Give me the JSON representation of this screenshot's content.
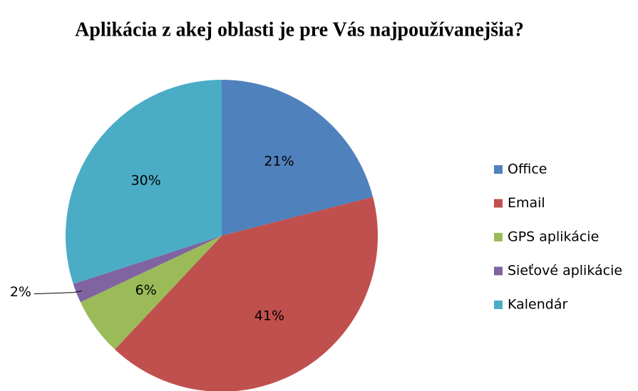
{
  "chart_data": {
    "type": "pie",
    "title": "Aplikácia z akej oblasti je pre Vás najpoužívanejšia?",
    "categories": [
      "Office",
      "Email",
      "GPS aplikácie",
      "Sieťové aplikácie",
      "Kalendár"
    ],
    "values": [
      21,
      41,
      6,
      2,
      30
    ],
    "value_labels": [
      "21%",
      "41%",
      "6%",
      "2%",
      "30%"
    ],
    "colors": [
      "#4f81bd",
      "#c0504d",
      "#9bbb59",
      "#8064a2",
      "#4bacc6"
    ],
    "legend": "right"
  }
}
